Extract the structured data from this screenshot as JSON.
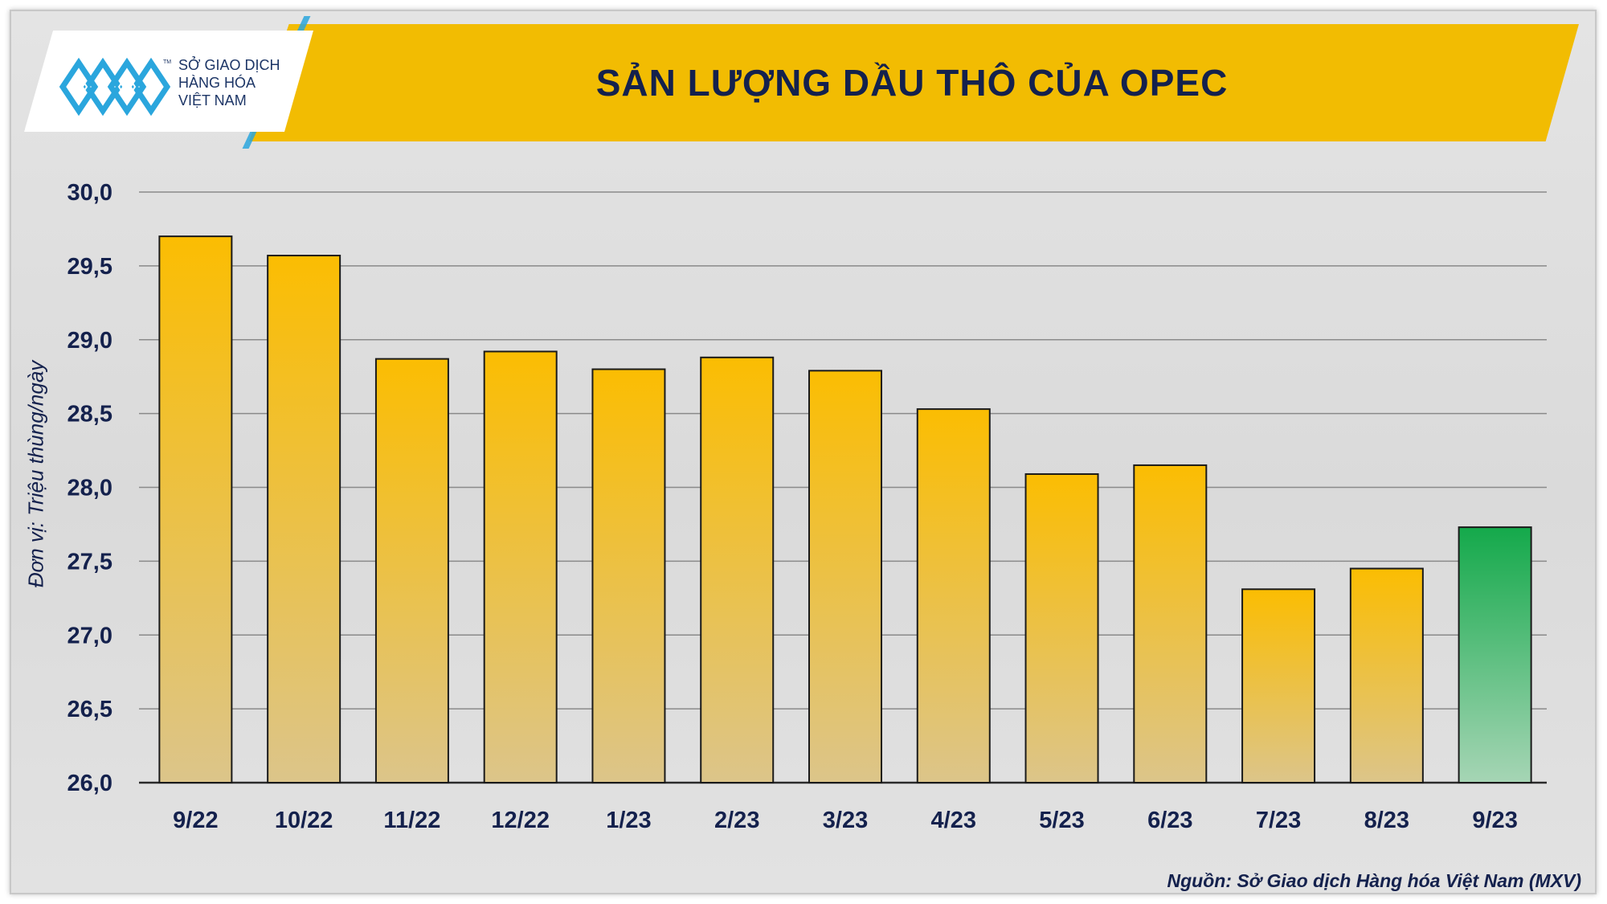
{
  "header": {
    "title": "SẢN LƯỢNG DẦU THÔ CỦA OPEC",
    "logo_lines": [
      "SỞ GIAO DỊCH",
      "HÀNG HÓA",
      "VIỆT NAM"
    ],
    "logo_tm": "TM"
  },
  "footer": {
    "source": "Nguồn: Sở Giao dịch Hàng hóa Việt Nam (MXV)"
  },
  "colors": {
    "banner": "#f2bc02",
    "bar_top": "#fbbd02",
    "bar_bottom": "#dcc58a",
    "highlight_top": "#14a94b",
    "highlight_bottom": "#a6d5b5",
    "text": "#14214d"
  },
  "chart_data": {
    "type": "bar",
    "categories": [
      "9/22",
      "10/22",
      "11/22",
      "12/22",
      "1/23",
      "2/23",
      "3/23",
      "4/23",
      "5/23",
      "6/23",
      "7/23",
      "8/23",
      "9/23"
    ],
    "values": [
      29.7,
      29.57,
      28.87,
      28.92,
      28.8,
      28.88,
      28.79,
      28.53,
      28.09,
      28.15,
      27.31,
      27.45,
      27.73
    ],
    "highlight_index": 12,
    "ylabel": "Đơn vị: Triệu thùng/ngày",
    "ylim": [
      26.0,
      30.0
    ],
    "yticks": [
      "26,0",
      "26,5",
      "27,0",
      "27,5",
      "28,0",
      "28,5",
      "29,0",
      "29,5",
      "30,0"
    ],
    "grid": true,
    "legend": "none"
  }
}
